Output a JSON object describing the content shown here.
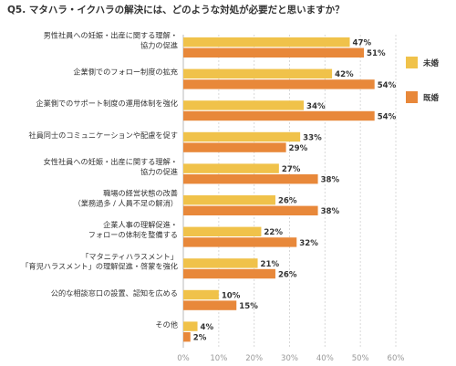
{
  "chart_data": {
    "type": "bar",
    "orientation": "horizontal",
    "title": "Q5. マタハラ・イクハラの解決には、どのような対処が必要だと思いますか？",
    "categories": [
      [
        "男性社員への妊娠・出産に関する理解・",
        "協力の促進"
      ],
      [
        "企業側でのフォロー制度の拡充"
      ],
      [
        "企業側でのサポート制度の運用体制を強化"
      ],
      [
        "社員同士のコミュニケーションや配慮を促す"
      ],
      [
        "女性社員への妊娠・出産に関する理解・",
        "協力の促進"
      ],
      [
        "職場の経営状態の改善",
        "（業務過多 / 人員不足の解消）"
      ],
      [
        "企業人事の理解促進・",
        "フォローの体制を整備する"
      ],
      [
        "「マタニティハラスメント」",
        "「育児ハラスメント」の理解促進・啓蒙を強化"
      ],
      [
        "公的な相談窓口の設置、認知を広める"
      ],
      [
        "その他"
      ]
    ],
    "series": [
      {
        "name": "未婚",
        "color": "#f0c24a",
        "values": [
          47,
          42,
          34,
          33,
          27,
          26,
          22,
          21,
          10,
          4
        ]
      },
      {
        "name": "既婚",
        "color": "#e8883a",
        "values": [
          51,
          54,
          54,
          29,
          38,
          38,
          32,
          26,
          15,
          2
        ]
      }
    ],
    "xlim": [
      0,
      60
    ],
    "xticks": [
      "0%",
      "10%",
      "20%",
      "30%",
      "40%",
      "50%",
      "60%"
    ],
    "value_suffix": "%",
    "grid": "vertical dashed",
    "legend_position": "right"
  }
}
